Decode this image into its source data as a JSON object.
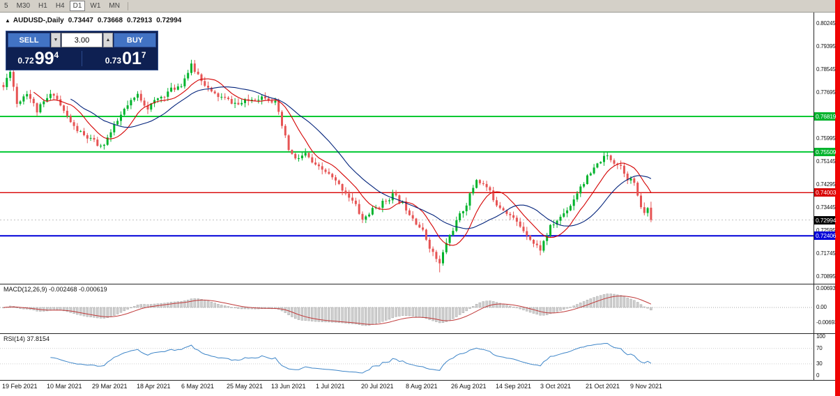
{
  "toolbar": {
    "timeframes": [
      {
        "label": "5",
        "active": false
      },
      {
        "label": "M30",
        "active": false
      },
      {
        "label": "H1",
        "active": false
      },
      {
        "label": "H4",
        "active": false
      },
      {
        "label": "D1",
        "active": true
      },
      {
        "label": "W1",
        "active": false
      },
      {
        "label": "MN",
        "active": false
      }
    ]
  },
  "chart_header": {
    "collapse_icon": "▲",
    "symbol_label": "AUDUSD-,Daily",
    "open": "0.73447",
    "high": "0.73668",
    "low": "0.72913",
    "close": "0.72994"
  },
  "trade_panel": {
    "sell_label": "SELL",
    "buy_label": "BUY",
    "volume": "3.00",
    "icons": {
      "volume_down": "▼",
      "volume_up": "▲"
    },
    "sell_price": {
      "prefix": "0.72",
      "big": "99",
      "sup": "4"
    },
    "buy_price": {
      "prefix": "0.73",
      "big": "01",
      "sup": "7"
    },
    "panel_color": "#0e2052",
    "button_color": "#4273c4"
  },
  "price_axis": {
    "ticks": [
      "0.80245",
      "0.79395",
      "0.78545",
      "0.77695",
      "0.76845",
      "0.75995",
      "0.75145",
      "0.74295",
      "0.73445",
      "0.72595",
      "0.71745",
      "0.70895"
    ],
    "markers": [
      {
        "price": 0.76819,
        "label": "0.76819",
        "color": "#00b32c"
      },
      {
        "price": 0.75509,
        "label": "0.75509",
        "color": "#00b32c"
      },
      {
        "price": 0.74003,
        "label": "0.74003",
        "color": "#d80000"
      },
      {
        "price": 0.72994,
        "label": "0.72994",
        "color": "#000000"
      },
      {
        "price": 0.72406,
        "label": "0.72406",
        "color": "#0000d8"
      }
    ]
  },
  "indicators": {
    "macd": {
      "label": "MACD(12,26,9) -0.002468 -0.000619",
      "axis": [
        "0.006936",
        "0.00",
        "-0.006936"
      ]
    },
    "rsi": {
      "label": "RSI(14) 37.8154",
      "axis": [
        "100",
        "70",
        "30",
        "0"
      ]
    }
  },
  "chart_data": {
    "type": "candlestick",
    "symbol": "AUDUSD-",
    "timeframe": "Daily",
    "last_candle_ohlc": [
      0.73447,
      0.73668,
      0.72913,
      0.72994
    ],
    "current_bid": 0.72994,
    "y_axis": {
      "top": 0.80245,
      "bottom": 0.70895,
      "tick_step": 0.0085
    },
    "num_candles": 194,
    "seed": 11,
    "close_path_anchors": [
      [
        0,
        0.779
      ],
      [
        2,
        0.7855
      ],
      [
        4,
        0.773
      ],
      [
        7,
        0.7772
      ],
      [
        10,
        0.7702
      ],
      [
        13,
        0.7748
      ],
      [
        15,
        0.7768
      ],
      [
        18,
        0.77
      ],
      [
        21,
        0.7642
      ],
      [
        24,
        0.761
      ],
      [
        27,
        0.7588
      ],
      [
        29,
        0.7566
      ],
      [
        32,
        0.7622
      ],
      [
        36,
        0.7706
      ],
      [
        40,
        0.7762
      ],
      [
        43,
        0.7714
      ],
      [
        46,
        0.7746
      ],
      [
        50,
        0.778
      ],
      [
        53,
        0.7802
      ],
      [
        56,
        0.7868
      ],
      [
        59,
        0.782
      ],
      [
        62,
        0.7768
      ],
      [
        66,
        0.7746
      ],
      [
        70,
        0.7726
      ],
      [
        74,
        0.7746
      ],
      [
        78,
        0.7757
      ],
      [
        81,
        0.7732
      ],
      [
        83,
        0.7646
      ],
      [
        85,
        0.756
      ],
      [
        87,
        0.7522
      ],
      [
        90,
        0.7542
      ],
      [
        93,
        0.7496
      ],
      [
        96,
        0.7478
      ],
      [
        99,
        0.744
      ],
      [
        102,
        0.7402
      ],
      [
        105,
        0.7352
      ],
      [
        107,
        0.73
      ],
      [
        110,
        0.7336
      ],
      [
        113,
        0.7362
      ],
      [
        116,
        0.7392
      ],
      [
        119,
        0.736
      ],
      [
        122,
        0.731
      ],
      [
        125,
        0.7256
      ],
      [
        128,
        0.7176
      ],
      [
        130,
        0.7136
      ],
      [
        132,
        0.7216
      ],
      [
        135,
        0.7292
      ],
      [
        138,
        0.736
      ],
      [
        141,
        0.745
      ],
      [
        144,
        0.742
      ],
      [
        147,
        0.736
      ],
      [
        150,
        0.733
      ],
      [
        153,
        0.729
      ],
      [
        156,
        0.725
      ],
      [
        158,
        0.7212
      ],
      [
        160,
        0.7192
      ],
      [
        163,
        0.7272
      ],
      [
        166,
        0.731
      ],
      [
        169,
        0.7355
      ],
      [
        172,
        0.7425
      ],
      [
        175,
        0.747
      ],
      [
        178,
        0.752
      ],
      [
        180,
        0.7535
      ],
      [
        182,
        0.7515
      ],
      [
        184,
        0.75
      ],
      [
        186,
        0.7455
      ],
      [
        188,
        0.7438
      ],
      [
        189,
        0.738
      ],
      [
        191,
        0.732
      ],
      [
        192,
        0.7346
      ],
      [
        193,
        0.72994
      ]
    ],
    "spikes": [
      {
        "index": 130,
        "low": 0.7106
      },
      {
        "index": 56,
        "high": 0.7891
      }
    ],
    "colors": {
      "up": "#00b32c",
      "down": "#e65454",
      "bid_line": "#c0c0c0"
    },
    "hlines": [
      {
        "price": 0.76819,
        "color": "#00c832",
        "width": 2
      },
      {
        "price": 0.75509,
        "color": "#00c832",
        "width": 2
      },
      {
        "price": 0.74003,
        "color": "#d80000",
        "width": 1.4
      },
      {
        "price": 0.72406,
        "color": "#0000d8",
        "width": 2
      }
    ],
    "overlays": [
      {
        "type": "sma",
        "period": 10,
        "color": "#d40000"
      },
      {
        "type": "sma",
        "period": 21,
        "color": "#00217a"
      }
    ],
    "macd": {
      "fast": 12,
      "slow": 26,
      "signal_period": 9,
      "current_macd": -0.002468,
      "current_signal": -0.000619,
      "hist_color": "#cfcfcf",
      "signal_color": "#c03a3a"
    },
    "rsi": {
      "period": 14,
      "current": 37.8154,
      "line_color": "#3d85c8",
      "levels": [
        70,
        30
      ]
    },
    "x_tick_labels": [
      "19 Feb 2021",
      "10 Mar 2021",
      "29 Mar 2021",
      "18 Apr 2021",
      "6 May 2021",
      "25 May 2021",
      "13 Jun 2021",
      "1 Jul 2021",
      "20 Jul 2021",
      "8 Aug 2021",
      "26 Aug 2021",
      "14 Sep 2021",
      "3 Oct 2021",
      "21 Oct 2021",
      "9 Nov 2021"
    ]
  }
}
